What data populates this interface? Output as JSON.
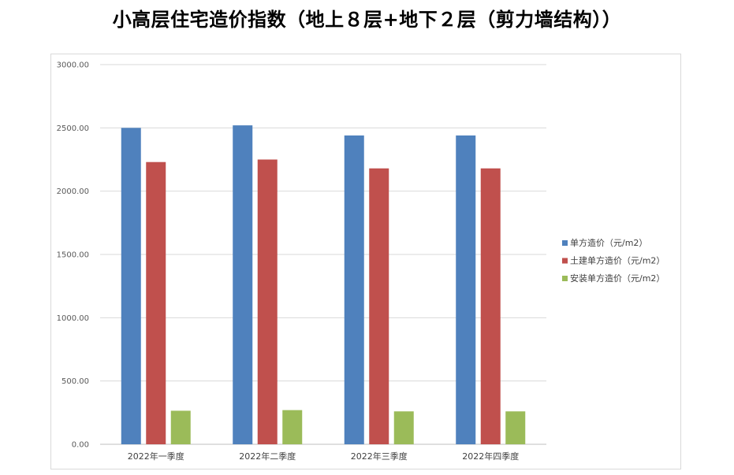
{
  "title": "小高层住宅造价指数（地上８层+地下２层（剪力墙结构））",
  "chart_data": {
    "type": "bar",
    "categories": [
      "2022年一季度",
      "2022年二季度",
      "2022年三季度",
      "2022年四季度"
    ],
    "series": [
      {
        "name": "单方造价（元/m2）",
        "color": "#4f81bd",
        "values": [
          2500,
          2520,
          2440,
          2440
        ]
      },
      {
        "name": "土建单方造价（元/m2）",
        "color": "#c0504d",
        "values": [
          2230,
          2250,
          2180,
          2180
        ]
      },
      {
        "name": "安装单方造价（元/m2）",
        "color": "#9bbb59",
        "values": [
          265,
          270,
          260,
          260
        ]
      }
    ],
    "yticks": [
      "0.00",
      "500.00",
      "1000.00",
      "1500.00",
      "2000.00",
      "2500.00",
      "3000.00"
    ],
    "ylim": [
      0,
      3000
    ],
    "grid": true,
    "legend": "right"
  }
}
